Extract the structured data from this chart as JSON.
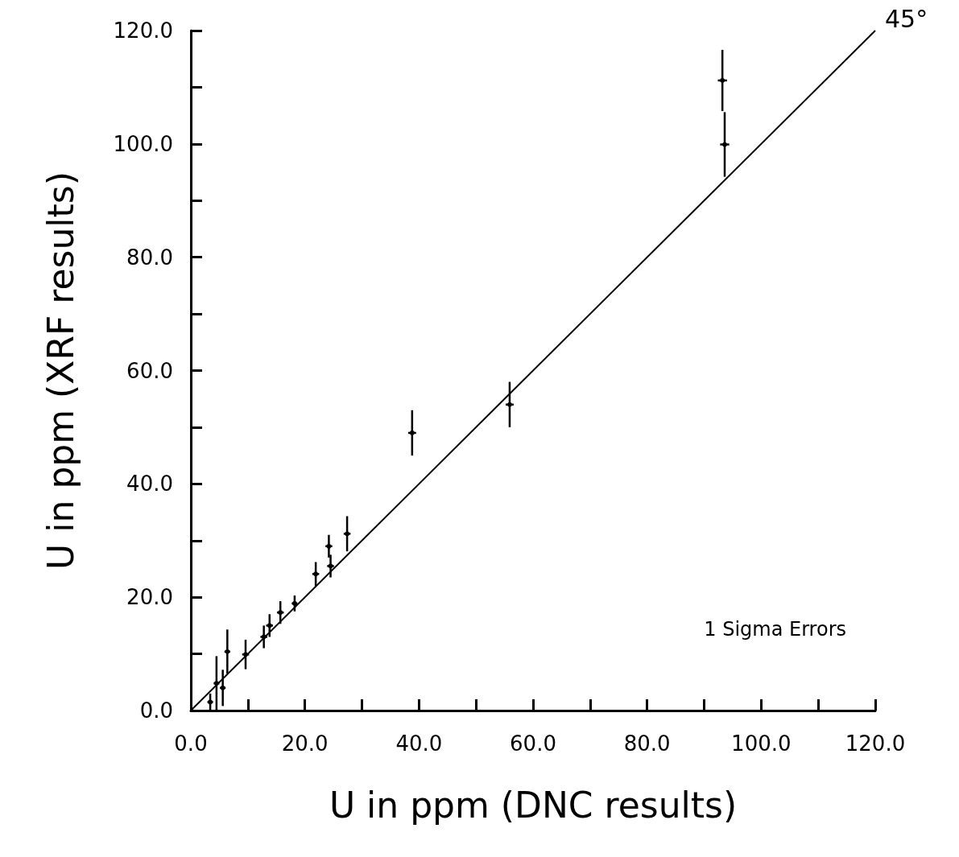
{
  "chart_data": {
    "type": "scatter",
    "xlabel": "U in ppm (DNC results)",
    "ylabel": "U in ppm (XRF results)",
    "annotations": [
      {
        "text": "45°",
        "x": 120,
        "y": 120
      },
      "1 Sigma Errors"
    ],
    "xlim": [
      0,
      120
    ],
    "ylim": [
      0,
      120
    ],
    "xticks": [
      {
        "value": 0,
        "label": "0.0"
      },
      {
        "value": 10,
        "label": null
      },
      {
        "value": 20,
        "label": "20.0"
      },
      {
        "value": 30,
        "label": null
      },
      {
        "value": 40,
        "label": "40.0"
      },
      {
        "value": 50,
        "label": null
      },
      {
        "value": 60,
        "label": "60.0"
      },
      {
        "value": 70,
        "label": null
      },
      {
        "value": 80,
        "label": "80.0"
      },
      {
        "value": 90,
        "label": null
      },
      {
        "value": 100,
        "label": "100.0"
      },
      {
        "value": 110,
        "label": null
      },
      {
        "value": 120,
        "label": "120.0"
      }
    ],
    "yticks": [
      {
        "value": 0,
        "label": "0.0"
      },
      {
        "value": 10,
        "label": null
      },
      {
        "value": 20,
        "label": "20.0"
      },
      {
        "value": 30,
        "label": null
      },
      {
        "value": 40,
        "label": "40.0"
      },
      {
        "value": 50,
        "label": null
      },
      {
        "value": 60,
        "label": "60.0"
      },
      {
        "value": 70,
        "label": null
      },
      {
        "value": 80,
        "label": "80.0"
      },
      {
        "value": 90,
        "label": null
      },
      {
        "value": 100,
        "label": "100.0"
      },
      {
        "value": 110,
        "label": null
      },
      {
        "value": 120,
        "label": "120.0"
      }
    ],
    "grid": false,
    "series": [
      {
        "color": "#000000",
        "x": [
          93.2,
          93.6,
          55.9,
          38.8,
          27.4,
          24.2,
          24.5,
          21.9,
          18.2,
          15.7,
          12.8,
          13.8,
          9.6,
          6.4,
          4.5,
          5.6,
          3.4
        ],
        "values": [
          111.2,
          99.9,
          54.0,
          49.0,
          31.2,
          29.0,
          25.5,
          24.1,
          18.9,
          17.3,
          13.0,
          15.0,
          9.9,
          10.4,
          4.8,
          4.0,
          1.5
        ],
        "errors": [
          5.4,
          5.7,
          4.0,
          4.0,
          3.1,
          2.0,
          2.0,
          2.1,
          1.4,
          2.0,
          2.0,
          2.0,
          2.6,
          3.9,
          4.8,
          3.2,
          1.5
        ],
        "xerrors": [
          0.8,
          0.8,
          0.7,
          0.7,
          0.6,
          0.6,
          0.6,
          0.6,
          0.5,
          0.6,
          0.6,
          0.6,
          0.6,
          0.5,
          0.5,
          0.5,
          0.5
        ]
      },
      {
        "type": "line",
        "color": "#000000",
        "x": [
          0,
          120
        ],
        "values": [
          0,
          120
        ]
      }
    ]
  }
}
